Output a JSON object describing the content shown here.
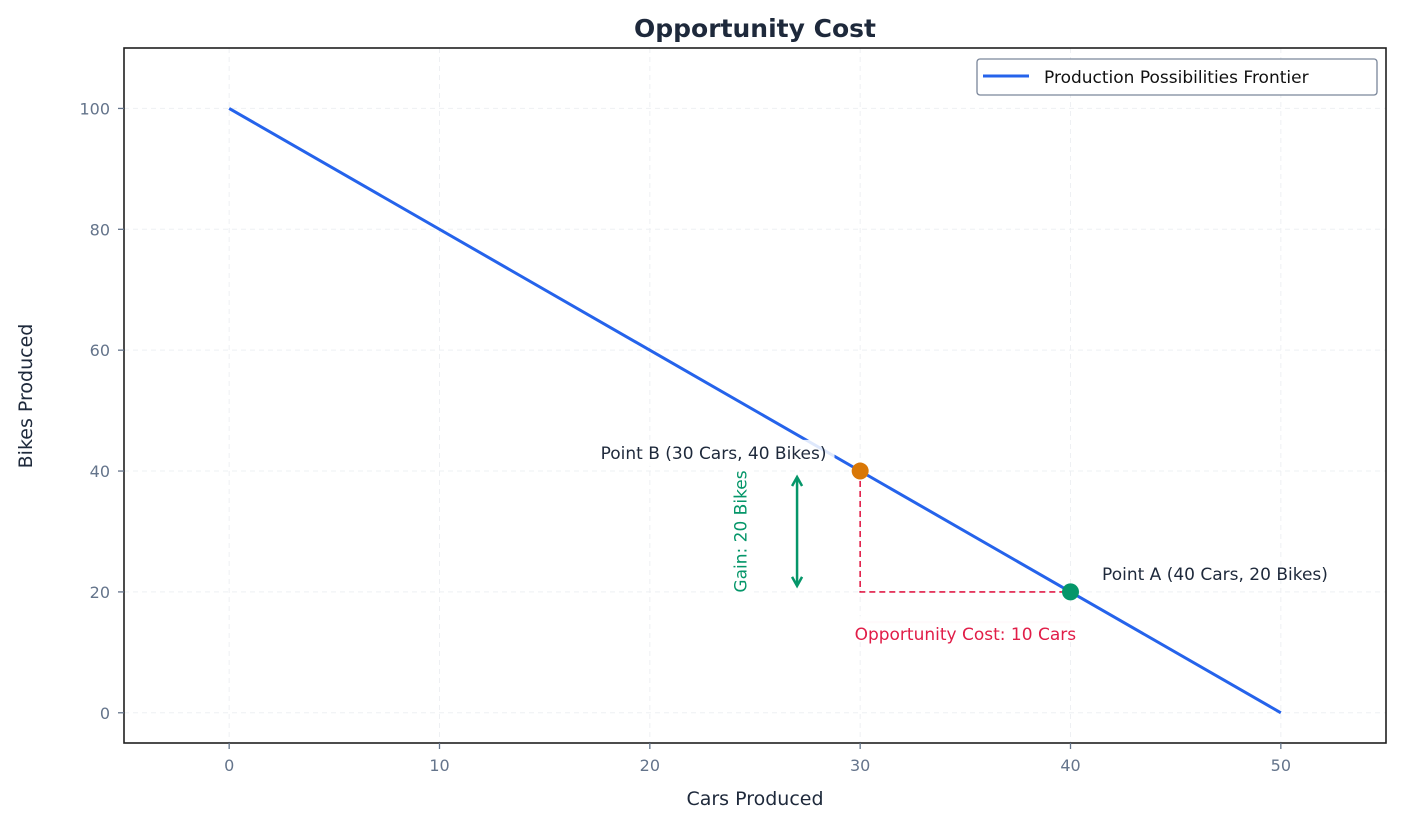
{
  "chart_data": {
    "type": "line",
    "title": "Opportunity Cost",
    "xlabel": "Cars Produced",
    "ylabel": "Bikes Produced",
    "xlim": [
      -5,
      55
    ],
    "ylim": [
      -5,
      110
    ],
    "xticks": [
      0,
      10,
      20,
      30,
      40,
      50
    ],
    "yticks": [
      0,
      20,
      40,
      60,
      80,
      100
    ],
    "grid": true,
    "legend_position": "top-right",
    "series": [
      {
        "name": "Production Possibilities Frontier",
        "x": [
          0,
          50
        ],
        "y": [
          100,
          0
        ],
        "color": "#2563eb"
      }
    ],
    "points": [
      {
        "label": "Point B (30 Cars, 40 Bikes)",
        "x": 30,
        "y": 40,
        "color": "#d97706",
        "label_x": 28.4,
        "label_y": 43,
        "anchor": "end"
      },
      {
        "label": "Point A (40 Cars, 20 Bikes)",
        "x": 40,
        "y": 20,
        "color": "#059669",
        "label_x": 41.5,
        "label_y": 23,
        "anchor": "start"
      }
    ],
    "annotations": {
      "gain": {
        "text": "Gain: 20 Bikes",
        "x": 27,
        "y_from": 40,
        "y_to": 20,
        "color": "#059669",
        "text_x": 24.3,
        "text_y": 30
      },
      "opportunity_cost": {
        "text": "Opportunity Cost: 10 Cars",
        "x_from": 30,
        "x_to": 40,
        "y": 15,
        "color": "#e11d48",
        "text_x": 35,
        "text_y": 13
      },
      "guide": {
        "from": [
          30,
          40
        ],
        "corner": [
          30,
          20
        ],
        "to": [
          40,
          20
        ],
        "color": "#e11d48"
      }
    }
  }
}
